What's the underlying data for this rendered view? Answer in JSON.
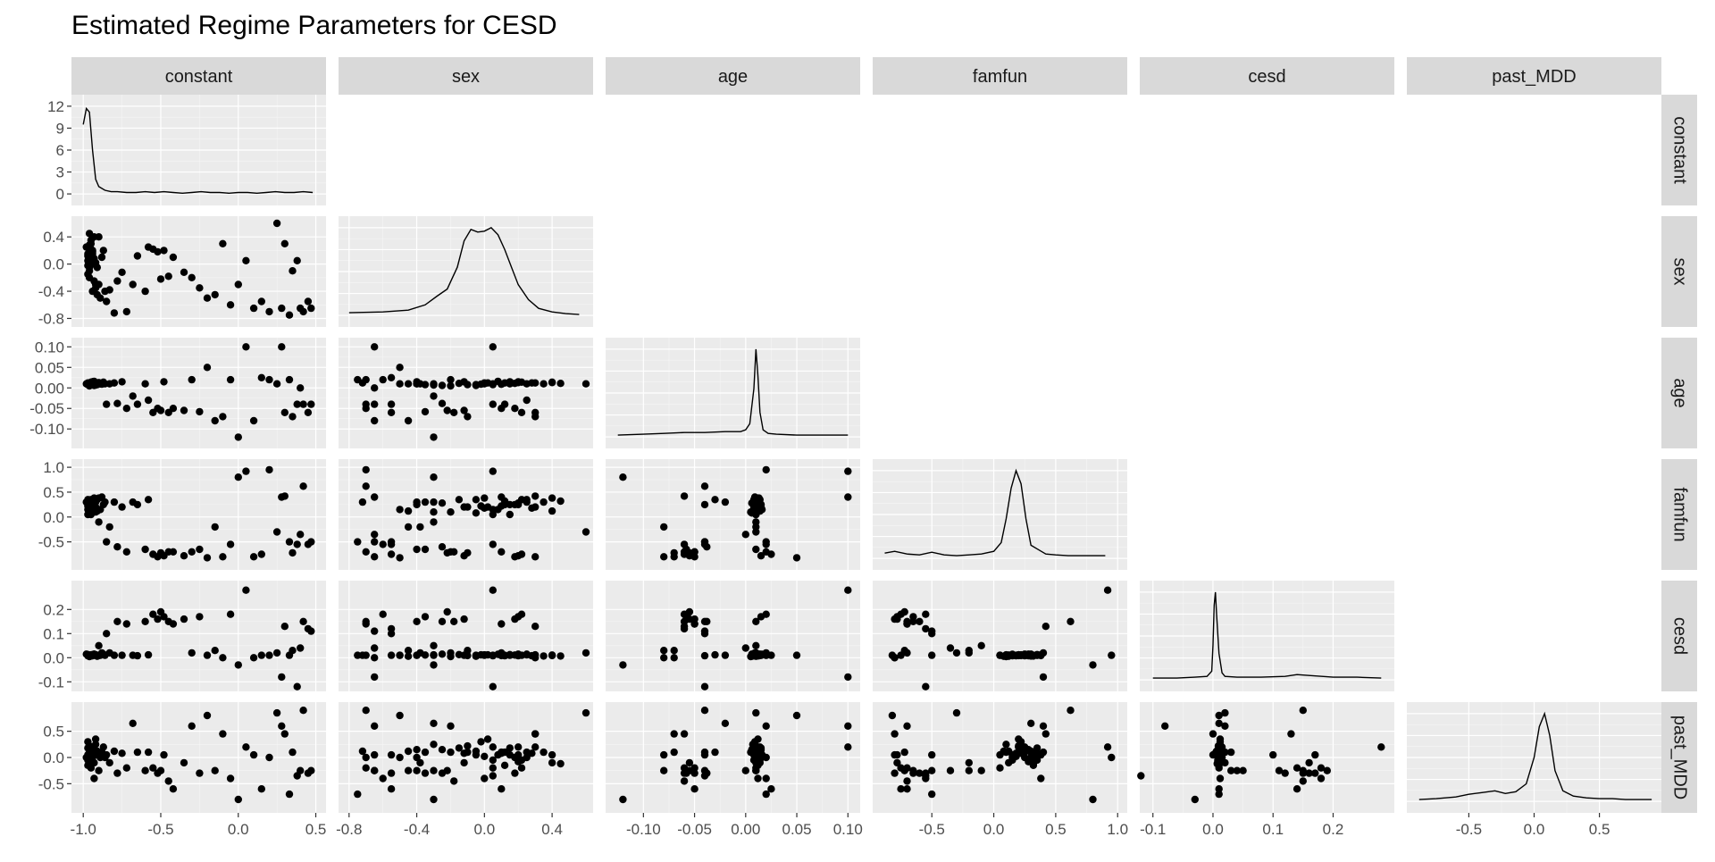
{
  "chart_data": {
    "type": "scatter",
    "title": "Estimated Regime Parameters for CESD",
    "variables": [
      "constant",
      "sex",
      "age",
      "famfun",
      "cesd",
      "past_MDD"
    ],
    "axes": {
      "constant": {
        "range": [
          -1.03,
          0.52
        ],
        "ticks": [
          -1.0,
          -0.5,
          0.0,
          0.5
        ],
        "tick_labels": [
          "-1.0",
          "-0.5",
          "0.0",
          "0.5"
        ]
      },
      "sex": {
        "range": [
          -0.82,
          0.6
        ],
        "ticks": [
          -0.8,
          -0.4,
          0.0,
          0.4
        ],
        "tick_labels": [
          "-0.8",
          "-0.4",
          "0.0",
          "0.4"
        ]
      },
      "age": {
        "range": [
          -0.13,
          0.105
        ],
        "ticks": [
          -0.1,
          -0.05,
          0.0,
          0.05,
          0.1
        ],
        "tick_labels": [
          "-0.10",
          "-0.05",
          "0.00",
          "0.05",
          "0.10"
        ]
      },
      "famfun": {
        "range": [
          -0.92,
          1.02
        ],
        "ticks": [
          -0.5,
          0.0,
          0.5,
          1.0
        ],
        "tick_labels": [
          "-0.5",
          "0.0",
          "0.5",
          "1.0"
        ]
      },
      "cesd": {
        "range": [
          -0.11,
          0.29
        ],
        "ticks": [
          -0.1,
          0.0,
          0.1,
          0.2
        ],
        "tick_labels": [
          "-0.1",
          "0.0",
          "0.1",
          "0.2"
        ]
      },
      "past_MDD": {
        "range": [
          -0.92,
          0.92
        ],
        "ticks": [
          -0.5,
          0.0,
          0.5
        ],
        "tick_labels": [
          "-0.5",
          "0.0",
          "0.5"
        ]
      }
    },
    "diag_left_axis": {
      "ticks": [
        0,
        3,
        6,
        9,
        12
      ],
      "tick_labels": [
        "0",
        "3",
        "6",
        "9",
        "12"
      ],
      "range": [
        -0.6,
        12.6
      ]
    },
    "densities": [
      {
        "var": "constant",
        "peak_x": -0.97,
        "y_values": [
          9.5,
          11.7,
          11.2,
          6.0,
          2.0,
          1.0,
          0.5,
          0.3,
          0.3,
          0.2,
          0.2,
          0.3,
          0.2,
          0.3,
          0.2,
          0.1,
          0.2,
          0.3,
          0.2,
          0.2,
          0.1,
          0.2,
          0.2,
          0.1,
          0.2,
          0.3,
          0.2,
          0.2,
          0.3,
          0.2
        ],
        "x_values": [
          -1.0,
          -0.98,
          -0.96,
          -0.94,
          -0.92,
          -0.9,
          -0.86,
          -0.82,
          -0.78,
          -0.72,
          -0.66,
          -0.6,
          -0.54,
          -0.48,
          -0.42,
          -0.36,
          -0.3,
          -0.24,
          -0.18,
          -0.12,
          -0.06,
          0.0,
          0.06,
          0.12,
          0.18,
          0.24,
          0.3,
          0.36,
          0.42,
          0.48
        ]
      },
      {
        "var": "sex",
        "x_values": [
          -0.8,
          -0.6,
          -0.45,
          -0.35,
          -0.28,
          -0.22,
          -0.16,
          -0.12,
          -0.08,
          -0.04,
          0.0,
          0.04,
          0.08,
          0.12,
          0.16,
          0.2,
          0.26,
          0.32,
          0.4,
          0.48,
          0.56
        ],
        "y_values": [
          0.03,
          0.04,
          0.06,
          0.12,
          0.22,
          0.3,
          0.55,
          0.85,
          0.98,
          0.95,
          0.96,
          1.0,
          0.92,
          0.75,
          0.55,
          0.35,
          0.18,
          0.08,
          0.04,
          0.02,
          0.01
        ]
      },
      {
        "var": "age",
        "x_values": [
          -0.125,
          -0.1,
          -0.08,
          -0.06,
          -0.04,
          -0.02,
          -0.005,
          0.0,
          0.004,
          0.008,
          0.01,
          0.012,
          0.014,
          0.017,
          0.022,
          0.03,
          0.05,
          0.07,
          0.09,
          0.1
        ],
        "y_values": [
          0.02,
          0.03,
          0.04,
          0.05,
          0.05,
          0.06,
          0.06,
          0.08,
          0.15,
          0.55,
          1.0,
          0.7,
          0.28,
          0.08,
          0.04,
          0.03,
          0.02,
          0.02,
          0.02,
          0.02
        ]
      },
      {
        "var": "famfun",
        "x_values": [
          -0.88,
          -0.8,
          -0.7,
          -0.6,
          -0.5,
          -0.4,
          -0.3,
          -0.2,
          -0.1,
          0.0,
          0.06,
          0.1,
          0.14,
          0.18,
          0.22,
          0.26,
          0.3,
          0.36,
          0.42,
          0.5,
          0.6,
          0.7,
          0.8,
          0.9
        ],
        "y_values": [
          0.06,
          0.08,
          0.05,
          0.04,
          0.07,
          0.04,
          0.03,
          0.04,
          0.05,
          0.08,
          0.18,
          0.45,
          0.8,
          1.0,
          0.85,
          0.45,
          0.15,
          0.1,
          0.05,
          0.04,
          0.03,
          0.03,
          0.03,
          0.03
        ]
      },
      {
        "var": "cesd",
        "x_values": [
          -0.1,
          -0.06,
          -0.03,
          -0.01,
          -0.002,
          0.0,
          0.002,
          0.004,
          0.006,
          0.01,
          0.015,
          0.02,
          0.04,
          0.08,
          0.12,
          0.14,
          0.16,
          0.2,
          0.24,
          0.28
        ],
        "y_values": [
          0.02,
          0.02,
          0.03,
          0.04,
          0.1,
          0.4,
          0.85,
          1.0,
          0.75,
          0.3,
          0.08,
          0.04,
          0.03,
          0.03,
          0.04,
          0.06,
          0.05,
          0.03,
          0.03,
          0.02
        ]
      },
      {
        "var": "past_MDD",
        "x_values": [
          -0.88,
          -0.75,
          -0.6,
          -0.5,
          -0.4,
          -0.3,
          -0.22,
          -0.14,
          -0.06,
          0.0,
          0.04,
          0.08,
          0.12,
          0.16,
          0.22,
          0.3,
          0.4,
          0.5,
          0.6,
          0.7,
          0.8,
          0.9
        ],
        "y_values": [
          0.02,
          0.03,
          0.05,
          0.08,
          0.1,
          0.12,
          0.09,
          0.11,
          0.2,
          0.5,
          0.85,
          1.0,
          0.75,
          0.35,
          0.12,
          0.06,
          0.04,
          0.03,
          0.03,
          0.02,
          0.02,
          0.02
        ]
      }
    ],
    "points": {
      "constant": [
        -0.97,
        -0.96,
        -0.95,
        -0.97,
        -0.94,
        -0.98,
        -0.96,
        -0.93,
        -0.95,
        -0.97,
        -0.96,
        -0.94,
        -0.92,
        -0.95,
        -0.97,
        -0.93,
        -0.96,
        -0.94,
        -0.91,
        -0.95,
        -0.97,
        -0.96,
        -0.93,
        -0.95,
        -0.9,
        -0.92,
        -0.94,
        -0.96,
        -0.89,
        -0.92,
        -0.88,
        -0.9,
        -0.87,
        -0.91,
        -0.93,
        -0.86,
        -0.85,
        -0.83,
        -0.8,
        -0.78,
        -0.75,
        -0.72,
        -0.68,
        -0.65,
        -0.6,
        -0.58,
        -0.55,
        -0.52,
        -0.5,
        -0.48,
        -0.45,
        -0.42,
        -0.35,
        -0.3,
        -0.25,
        -0.2,
        -0.15,
        -0.1,
        -0.05,
        0.0,
        0.05,
        0.1,
        0.15,
        0.2,
        0.25,
        0.28,
        0.3,
        0.33,
        0.35,
        0.38,
        0.4,
        0.42,
        0.45,
        0.47
      ],
      "sex": [
        0.15,
        -0.2,
        0.3,
        0.05,
        -0.4,
        0.25,
        -0.05,
        0.4,
        0.1,
        -0.15,
        0.0,
        0.2,
        -0.3,
        0.35,
        0.12,
        0.08,
        -0.1,
        0.18,
        -0.45,
        0.22,
        -0.02,
        0.28,
        -0.25,
        0.05,
        0.4,
        -0.35,
        0.15,
        0.45,
        -0.5,
        0.02,
        0.1,
        -0.3,
        0.2,
        -0.05,
        0.0,
        -0.4,
        -0.55,
        -0.38,
        -0.72,
        -0.25,
        -0.12,
        -0.7,
        -0.3,
        0.12,
        -0.4,
        0.25,
        0.22,
        0.18,
        -0.22,
        0.2,
        -0.18,
        0.1,
        -0.12,
        -0.2,
        -0.35,
        -0.5,
        -0.45,
        0.3,
        -0.6,
        -0.3,
        0.05,
        -0.65,
        -0.55,
        -0.7,
        0.6,
        -0.65,
        0.3,
        -0.75,
        -0.1,
        0.05,
        -0.65,
        -0.7,
        -0.55,
        -0.65
      ],
      "age": [
        0.01,
        0.005,
        0.012,
        0.008,
        0.015,
        0.01,
        0.006,
        0.014,
        0.009,
        0.011,
        0.01,
        0.013,
        0.007,
        0.01,
        0.012,
        0.016,
        0.008,
        0.011,
        0.01,
        0.014,
        0.009,
        0.012,
        0.006,
        0.01,
        0.013,
        0.008,
        0.015,
        0.011,
        0.01,
        0.012,
        0.009,
        0.01,
        0.014,
        0.008,
        0.012,
        0.01,
        -0.04,
        0.01,
        0.012,
        -0.038,
        0.015,
        -0.05,
        -0.02,
        -0.04,
        0.01,
        -0.03,
        -0.06,
        -0.05,
        -0.055,
        0.015,
        -0.06,
        -0.05,
        -0.055,
        0.02,
        -0.058,
        0.05,
        -0.08,
        -0.07,
        0.02,
        -0.12,
        0.1,
        -0.08,
        0.025,
        0.02,
        0.01,
        0.1,
        -0.06,
        0.02,
        -0.07,
        -0.04,
        0.0,
        -0.04,
        -0.06,
        -0.04
      ],
      "famfun": [
        0.05,
        0.1,
        0.2,
        0.15,
        0.25,
        0.3,
        0.08,
        0.12,
        0.22,
        0.35,
        0.18,
        0.28,
        0.1,
        0.3,
        0.32,
        0.15,
        0.2,
        0.25,
        0.12,
        0.35,
        0.22,
        0.18,
        0.28,
        0.05,
        0.38,
        0.3,
        0.25,
        0.32,
        0.15,
        0.2,
        0.4,
        -0.1,
        0.25,
        0.35,
        0.38,
        0.3,
        -0.5,
        -0.2,
        0.3,
        -0.6,
        0.2,
        -0.7,
        0.3,
        0.25,
        -0.65,
        0.35,
        -0.75,
        -0.8,
        -0.72,
        -0.78,
        -0.7,
        -0.7,
        -0.78,
        -0.7,
        -0.65,
        -0.82,
        -0.2,
        -0.8,
        -0.55,
        0.8,
        0.92,
        -0.8,
        -0.75,
        0.95,
        -0.3,
        0.4,
        0.42,
        -0.5,
        -0.72,
        -0.55,
        -0.35,
        0.62,
        -0.55,
        -0.5
      ],
      "cesd": [
        0.01,
        0.005,
        0.012,
        0.008,
        0.01,
        0.015,
        0.006,
        0.011,
        0.009,
        0.013,
        0.01,
        0.008,
        0.012,
        0.007,
        0.01,
        0.014,
        0.009,
        0.011,
        0.006,
        0.01,
        0.012,
        0.008,
        0.015,
        0.01,
        0.009,
        0.011,
        0.013,
        0.007,
        0.01,
        0.012,
        0.02,
        0.05,
        0.015,
        0.01,
        0.012,
        0.01,
        0.1,
        0.02,
        0.01,
        0.15,
        0.01,
        0.14,
        0.01,
        0.008,
        0.15,
        0.012,
        0.18,
        0.16,
        0.19,
        0.17,
        0.15,
        0.14,
        0.16,
        0.02,
        0.17,
        0.01,
        0.03,
        0.0,
        0.18,
        -0.03,
        0.28,
        0.0,
        0.01,
        0.01,
        0.02,
        -0.08,
        0.13,
        0.01,
        0.03,
        -0.12,
        0.04,
        0.15,
        0.12,
        0.11
      ],
      "past_MDD": [
        0.05,
        0.1,
        0.2,
        -0.05,
        0.15,
        0.0,
        0.12,
        -0.1,
        0.08,
        0.18,
        0.02,
        -0.08,
        0.25,
        0.1,
        -0.15,
        0.05,
        0.22,
        0.0,
        0.12,
        -0.05,
        0.3,
        0.08,
        0.15,
        -0.2,
        0.05,
        0.1,
        0.18,
        -0.12,
        0.0,
        0.35,
        0.1,
        -0.25,
        0.2,
        0.05,
        -0.4,
        0.0,
        0.05,
        -0.1,
        0.12,
        -0.3,
        0.08,
        -0.2,
        0.65,
        0.1,
        -0.25,
        0.1,
        -0.2,
        -0.3,
        -0.25,
        0.05,
        -0.45,
        -0.6,
        -0.1,
        0.6,
        -0.3,
        0.8,
        -0.25,
        0.45,
        -0.4,
        -0.8,
        0.2,
        0.05,
        -0.6,
        0.0,
        0.85,
        0.6,
        0.45,
        -0.7,
        0.1,
        -0.35,
        -0.25,
        0.9,
        -0.3,
        -0.25
      ]
    }
  }
}
